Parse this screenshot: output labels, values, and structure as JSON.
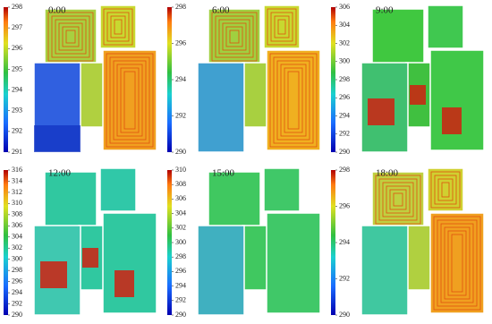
{
  "panels": [
    {
      "time": "0:00",
      "colorbar": {
        "ticks": [
          291,
          292,
          293,
          294,
          295,
          296,
          297,
          298
        ]
      }
    },
    {
      "time": "6:00",
      "colorbar": {
        "ticks": [
          290,
          292,
          294,
          296,
          298
        ]
      }
    },
    {
      "time": "9:00",
      "colorbar": {
        "ticks": [
          290,
          292,
          294,
          296,
          298,
          300,
          302,
          304,
          306
        ]
      }
    },
    {
      "time": "12:00",
      "colorbar": {
        "ticks": [
          290,
          292,
          294,
          296,
          298,
          300,
          302,
          304,
          306,
          308,
          310,
          312,
          314,
          316
        ]
      }
    },
    {
      "time": "15:00",
      "colorbar": {
        "ticks": [
          290,
          292,
          294,
          296,
          298,
          300,
          302,
          304,
          306,
          308,
          310
        ]
      }
    },
    {
      "time": "18:00",
      "colorbar": {
        "ticks": [
          290,
          292,
          294,
          296,
          298
        ]
      }
    }
  ]
}
